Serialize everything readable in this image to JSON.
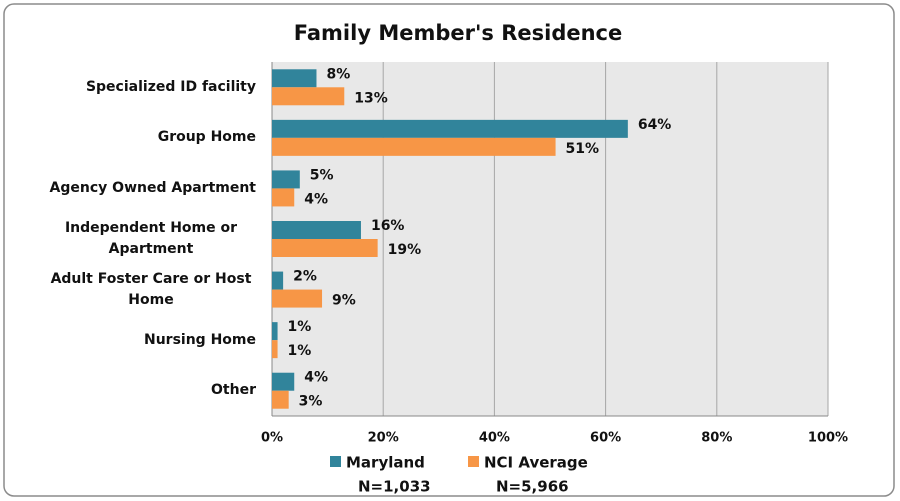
{
  "chart_data": {
    "type": "hbar",
    "title": "Family Member's Residence",
    "categories": [
      "Specialized ID facility",
      "Group Home",
      "Agency Owned Apartment",
      "Independent Home or Apartment",
      "Adult Foster Care or Host Home",
      "Nursing Home",
      "Other"
    ],
    "series": [
      {
        "name": "Maryland",
        "sample": "N=1,033",
        "color": "#31849b",
        "values": [
          8,
          64,
          5,
          16,
          2,
          1,
          4
        ],
        "value_labels": [
          "8%",
          "64%",
          "5%",
          "16%",
          "2%",
          "1%",
          "4%"
        ]
      },
      {
        "name": "NCI Average",
        "sample": "N=5,966",
        "color": "#f79646",
        "values": [
          13,
          51,
          4,
          19,
          9,
          1,
          3
        ],
        "value_labels": [
          "13%",
          "51%",
          "4%",
          "19%",
          "9%",
          "1%",
          "3%"
        ]
      }
    ],
    "xlim": [
      0,
      100
    ],
    "xticks": [
      {
        "value": 0,
        "label": "0%"
      },
      {
        "value": 20,
        "label": "20%"
      },
      {
        "value": 40,
        "label": "40%"
      },
      {
        "value": 60,
        "label": "60%"
      },
      {
        "value": 80,
        "label": "80%"
      },
      {
        "value": 100,
        "label": "100%"
      }
    ],
    "grid": true,
    "legend": "bottom"
  }
}
